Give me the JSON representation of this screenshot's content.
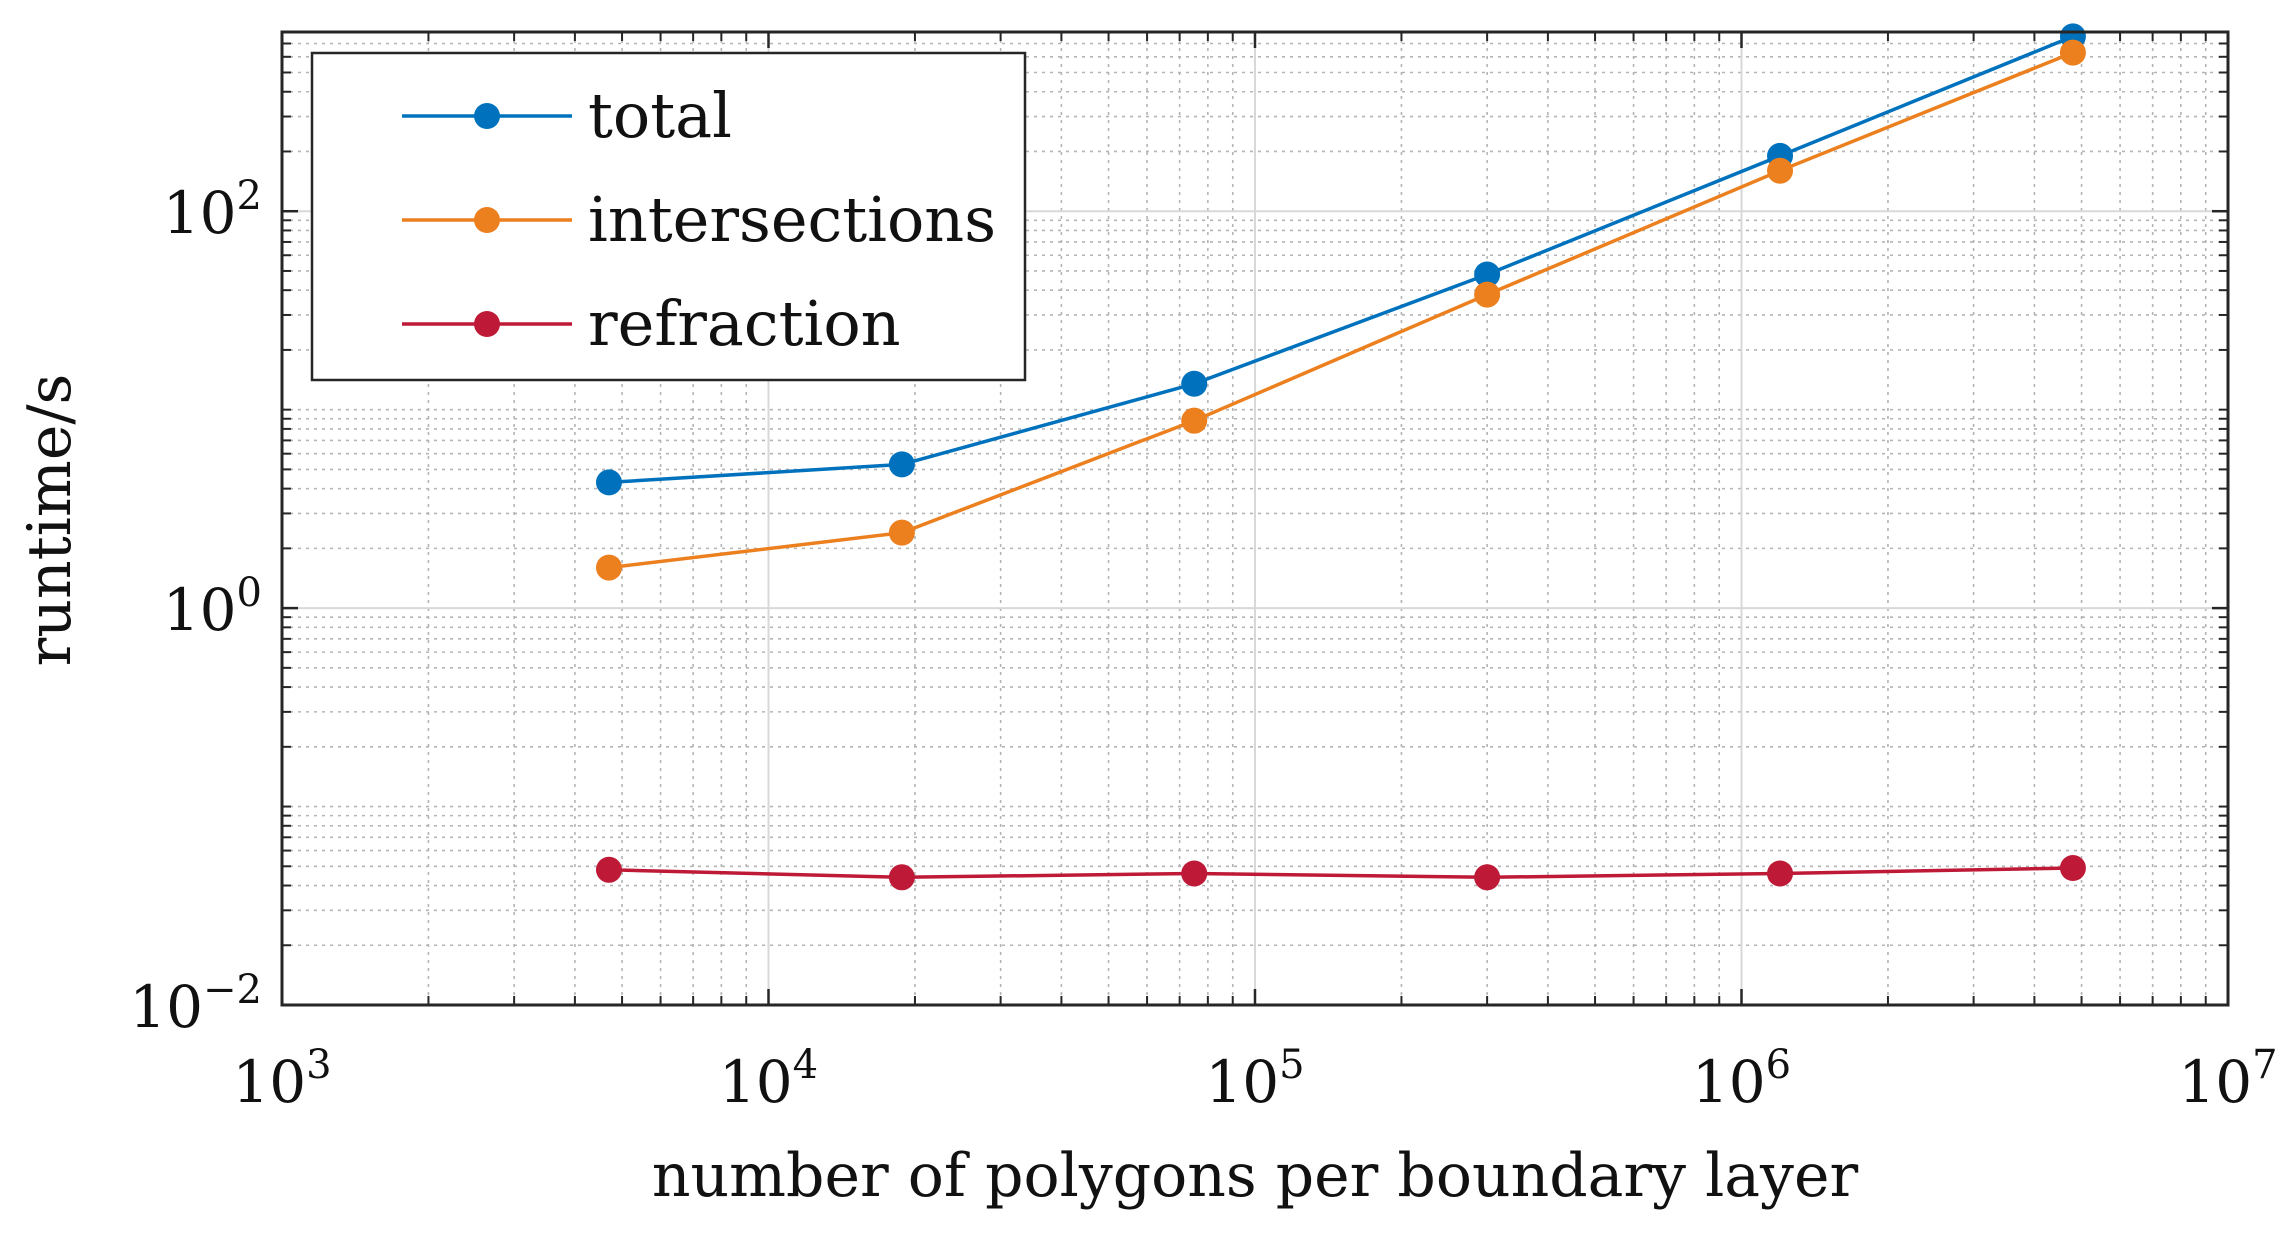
{
  "chart_data": {
    "type": "line",
    "xscale": "log",
    "yscale": "log",
    "xlabel": "number of polygons per boundary layer",
    "ylabel": "runtime/s",
    "xlim": [
      1000,
      10000000
    ],
    "ylim": [
      0.01,
      800
    ],
    "grid": true,
    "legend_position": "top-left",
    "x_ticks": [
      {
        "value": 1000,
        "base": "10",
        "exp": "3"
      },
      {
        "value": 10000,
        "base": "10",
        "exp": "4"
      },
      {
        "value": 100000,
        "base": "10",
        "exp": "5"
      },
      {
        "value": 1000000,
        "base": "10",
        "exp": "6"
      },
      {
        "value": 10000000,
        "base": "10",
        "exp": "7"
      }
    ],
    "y_ticks": [
      {
        "value": 0.01,
        "base": "10",
        "exp": "−2"
      },
      {
        "value": 1,
        "base": "10",
        "exp": "0"
      },
      {
        "value": 100,
        "base": "10",
        "exp": "2"
      }
    ],
    "x": [
      4700,
      18800,
      75000,
      300000,
      1200000,
      4800000
    ],
    "series": [
      {
        "name": "total",
        "color": "#0072BD",
        "values": [
          4.3,
          5.3,
          13.5,
          48,
          190,
          760
        ]
      },
      {
        "name": "intersections",
        "color": "#EC7F1E",
        "values": [
          1.6,
          2.4,
          8.8,
          38,
          160,
          630
        ]
      },
      {
        "name": "refraction",
        "color": "#BE1A38",
        "values": [
          0.048,
          0.044,
          0.046,
          0.044,
          0.046,
          0.049
        ]
      }
    ]
  }
}
